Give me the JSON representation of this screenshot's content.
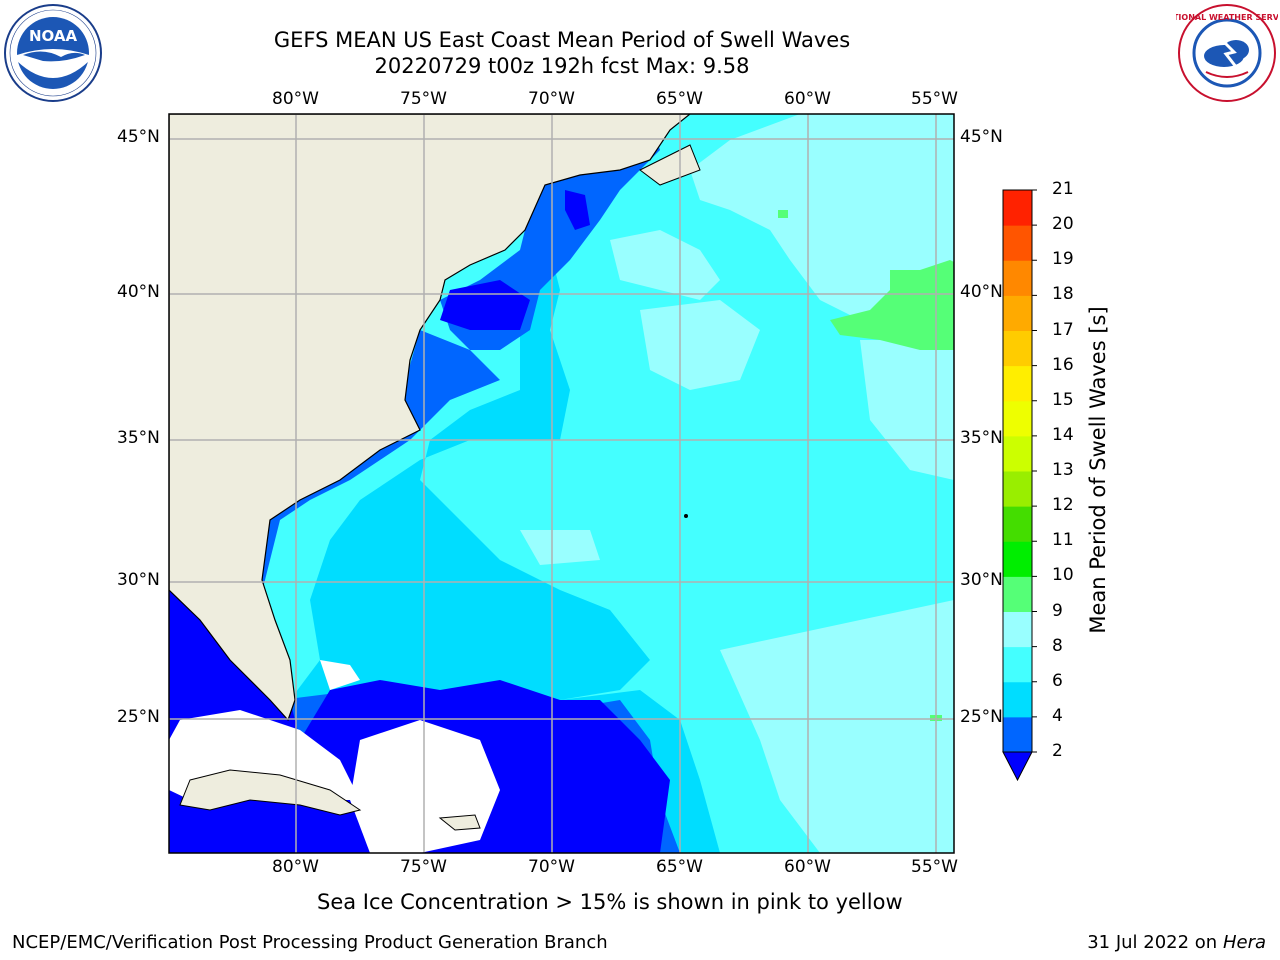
{
  "header": {
    "title_line1": "GEFS MEAN US East Coast Mean Period of Swell Waves",
    "title_line2": "20220729 t00z 192h fcst   Max: 9.58"
  },
  "logos": {
    "noaa": {
      "text": "NOAA",
      "ring_text": "NATIONAL OCEANIC AND ATMOSPHERIC ADMINISTRATION · U.S. DEPARTMENT OF COMMERCE"
    },
    "nws": {
      "ring_text": "NATIONAL WEATHER SERVICE"
    }
  },
  "map": {
    "lon_labels": [
      "80°W",
      "75°W",
      "70°W",
      "65°W",
      "60°W",
      "55°W"
    ],
    "lat_labels": [
      "45°N",
      "40°N",
      "35°N",
      "30°N",
      "25°N"
    ],
    "land_color": "#eeedde",
    "gridline_color": "#b0b0b0"
  },
  "colorbar": {
    "title": "Mean Period of Swell Waves [s]",
    "tick_labels": [
      "2",
      "4",
      "6",
      "8",
      "9",
      "10",
      "11",
      "12",
      "13",
      "14",
      "15",
      "16",
      "17",
      "18",
      "19",
      "20",
      "21"
    ],
    "colors": [
      "#0066ff",
      "#00ddff",
      "#44ffff",
      "#99ffff",
      "#55ff77",
      "#00ee00",
      "#44dd00",
      "#99ee00",
      "#ccff00",
      "#eeff00",
      "#ffee00",
      "#ffcc00",
      "#ffaa00",
      "#ff8800",
      "#ff5500",
      "#ff2200"
    ],
    "under_color": "#0000ff"
  },
  "swell_legend_colors": {
    "under_2": "#0000ff",
    "2_4": "#0066ff",
    "4_6": "#00ddff",
    "6_8": "#44ffff",
    "8_9": "#99ffff",
    "9_10": "#55ff77"
  },
  "caption": "Sea Ice Concentration > 15% is shown in pink to yellow",
  "footer": {
    "left": "NCEP/EMC/Verification Post Processing Product Generation Branch",
    "date": "31 Jul 2022 on ",
    "machine": "Hera"
  }
}
